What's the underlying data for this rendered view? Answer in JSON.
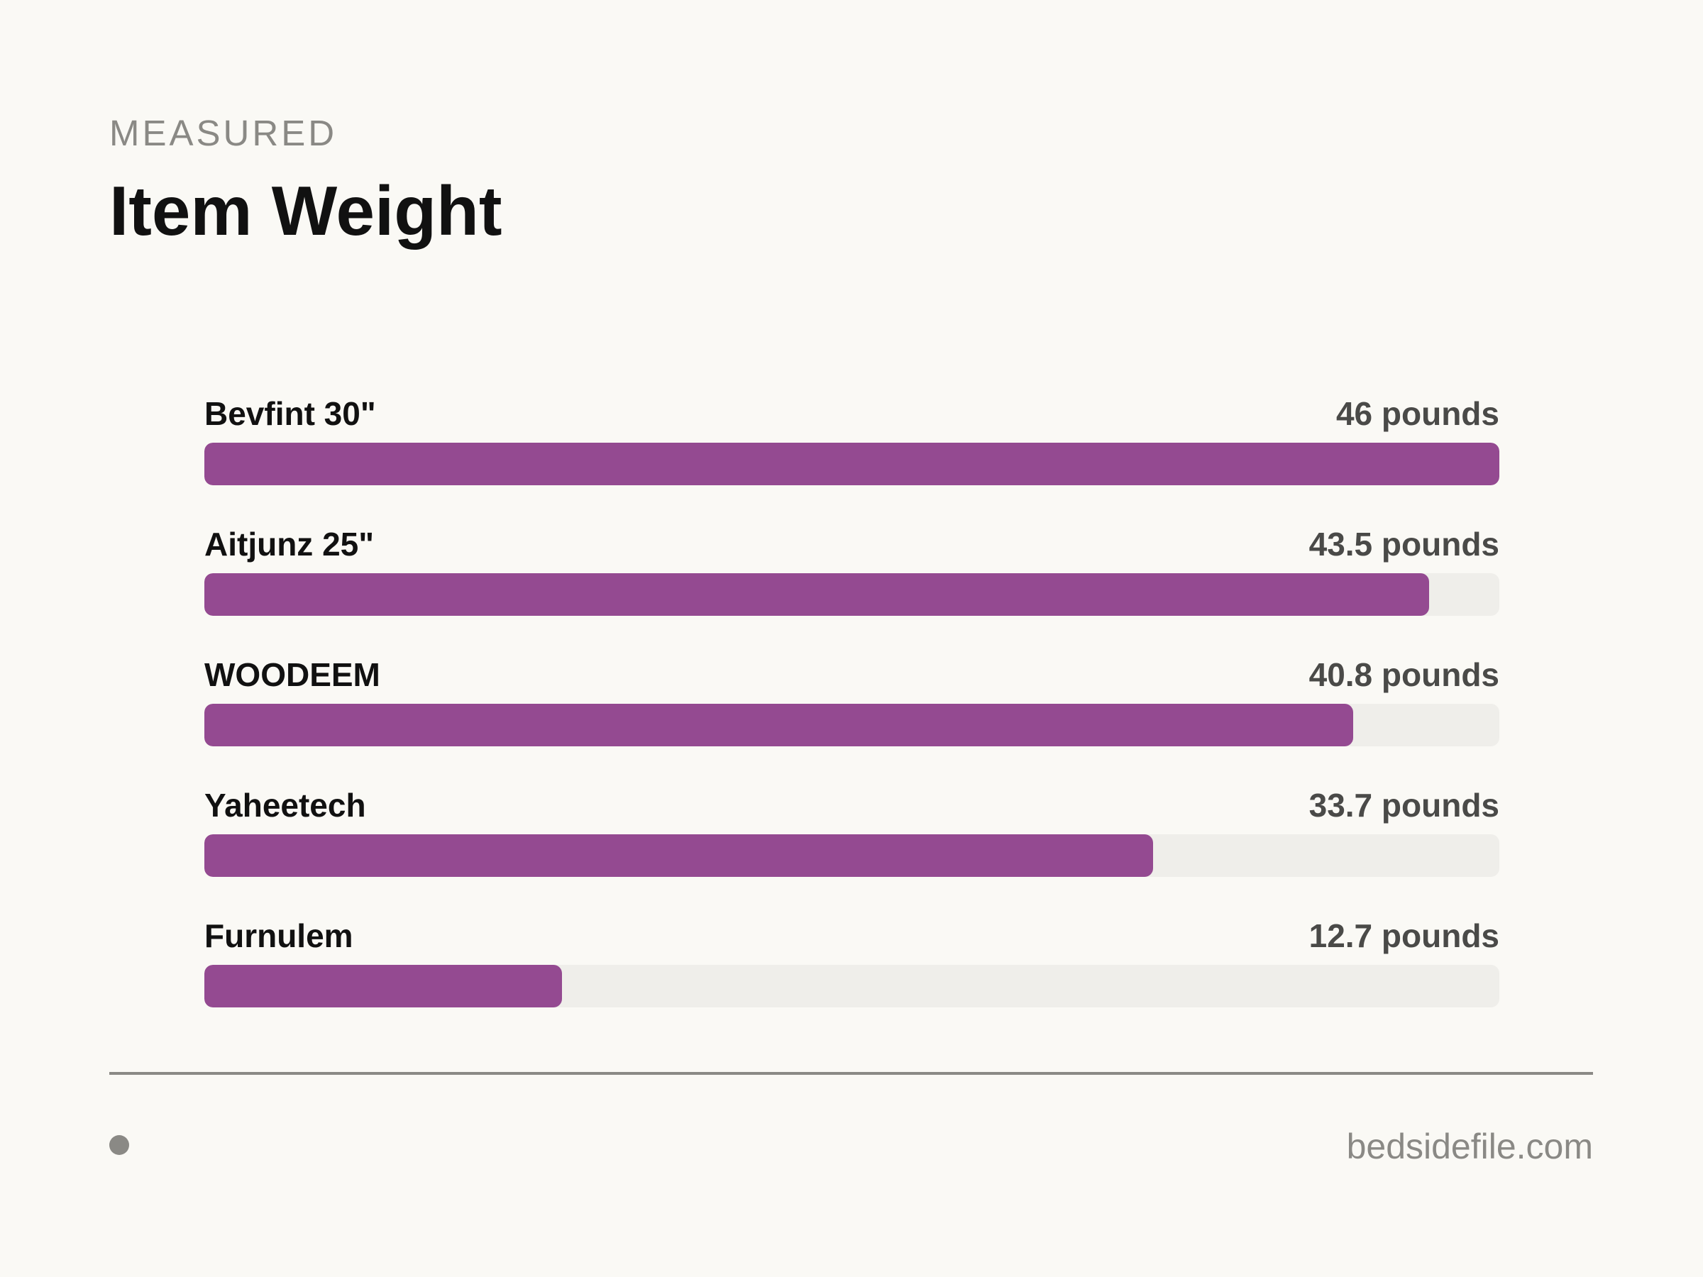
{
  "header": {
    "eyebrow": "MEASURED",
    "title": "Item Weight"
  },
  "footer": {
    "source": "bedsidefile.com"
  },
  "colors": {
    "bar_fill": "#944a91",
    "track": "#efeeea",
    "background": "#faf9f5"
  },
  "chart_data": {
    "type": "bar",
    "orientation": "horizontal",
    "title": "Item Weight",
    "unit": "pounds",
    "xlim": [
      0,
      46
    ],
    "grid": false,
    "categories": [
      "Bevfint 30\"",
      "Aitjunz 25\"",
      "WOODEEM",
      "Yaheetech",
      "Furnulem"
    ],
    "values": [
      46,
      43.5,
      40.8,
      33.7,
      12.7
    ],
    "value_labels": [
      "46 pounds",
      "43.5 pounds",
      "40.8 pounds",
      "33.7 pounds",
      "12.7 pounds"
    ]
  }
}
